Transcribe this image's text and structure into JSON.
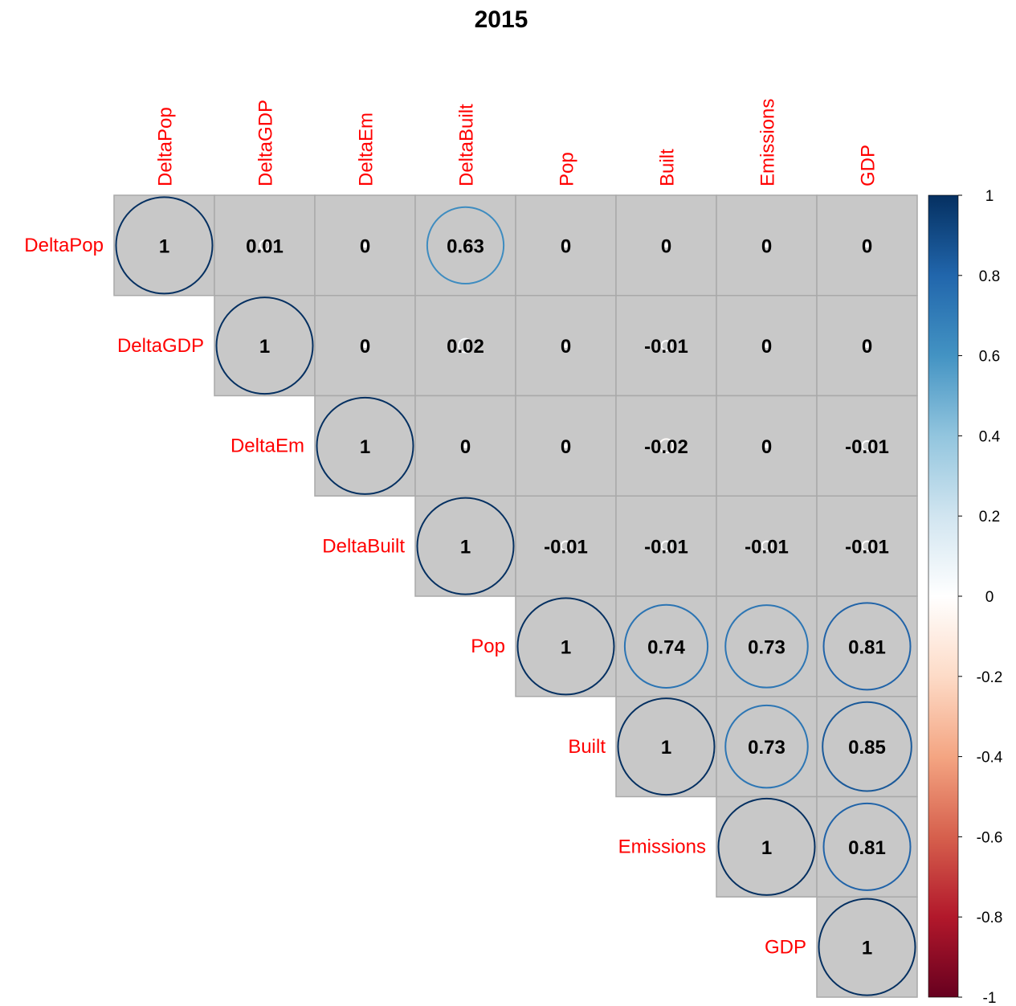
{
  "chart_data": {
    "type": "heatmap",
    "title": "2015",
    "variables": [
      "DeltaPop",
      "DeltaGDP",
      "DeltaEm",
      "DeltaBuilt",
      "Pop",
      "Built",
      "Emissions",
      "GDP"
    ],
    "matrix_part": "upper",
    "matrix": [
      [
        1,
        0.01,
        0,
        0.63,
        0,
        0,
        0,
        0
      ],
      [
        null,
        1,
        0,
        0.02,
        0,
        -0.01,
        0,
        0
      ],
      [
        null,
        null,
        1,
        0,
        0,
        -0.02,
        0,
        -0.01
      ],
      [
        null,
        null,
        null,
        1,
        -0.01,
        -0.01,
        -0.01,
        -0.01
      ],
      [
        null,
        null,
        null,
        null,
        1,
        0.74,
        0.73,
        0.81
      ],
      [
        null,
        null,
        null,
        null,
        null,
        1,
        0.73,
        0.85
      ],
      [
        null,
        null,
        null,
        null,
        null,
        null,
        1,
        0.81
      ],
      [
        null,
        null,
        null,
        null,
        null,
        null,
        null,
        1
      ]
    ],
    "colorbar": {
      "range": [
        -1,
        1
      ],
      "ticks": [
        "1",
        "0.8",
        "0.6",
        "0.4",
        "0.2",
        "0",
        "-0.2",
        "-0.4",
        "-0.6",
        "-0.8",
        "-1"
      ]
    },
    "colors": {
      "label": "#ff0000",
      "cell_bg": "#c8c8c8",
      "cell_border": "#a9a9a9",
      "scale": [
        "#67001f",
        "#b2182b",
        "#d6604d",
        "#f4a582",
        "#fddbc7",
        "#ffffff",
        "#d1e5f0",
        "#92c5de",
        "#4393c3",
        "#2166ac",
        "#053061"
      ]
    }
  }
}
